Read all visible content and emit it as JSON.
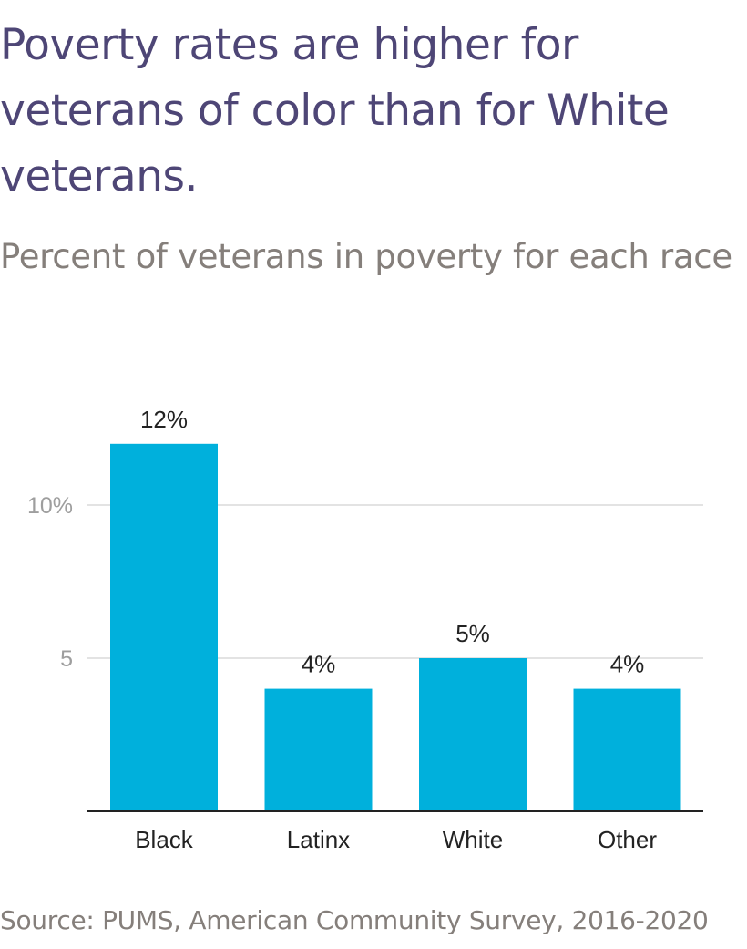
{
  "title": "Poverty rates are higher for veterans of color than for White veterans.",
  "subtitle": "Percent of veterans in poverty for each race",
  "source": "Source: PUMS, American Community Survey, 2016-2020",
  "colors": {
    "bar": "#00b0dc",
    "title": "#4e4676",
    "subtitle": "#857f7b",
    "grid": "#e3e3e3",
    "axis": "#222222",
    "tick_label": "#9e9e9e",
    "category_label": "#222222"
  },
  "chart_data": {
    "type": "bar",
    "categories": [
      "Black",
      "Latinx",
      "White",
      "Other"
    ],
    "values": [
      12,
      4,
      5,
      4
    ],
    "data_labels": [
      "12%",
      "4%",
      "5%",
      "4%"
    ],
    "y_ticks": [
      {
        "value": 5,
        "label": "5"
      },
      {
        "value": 10,
        "label": "10%"
      }
    ],
    "ylim": [
      0,
      13.3
    ],
    "grid": true,
    "xlabel": "",
    "ylabel": ""
  }
}
